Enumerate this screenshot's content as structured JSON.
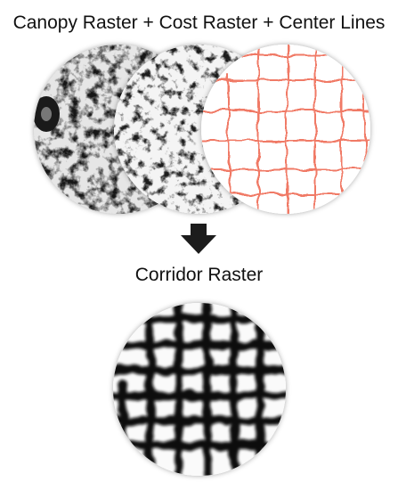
{
  "diagram": {
    "title_top": "Canopy Raster + Cost Raster + Center Lines",
    "title_bottom": "Corridor Raster",
    "inputs": [
      {
        "name": "Canopy Raster",
        "style": "dark-mottled"
      },
      {
        "name": "Cost Raster",
        "style": "light-mottled"
      },
      {
        "name": "Center Lines",
        "style": "red-grid"
      }
    ],
    "output": {
      "name": "Corridor Raster",
      "style": "black-grid"
    },
    "colors": {
      "center_line": "#f07a66",
      "corridor": "#111111",
      "arrow": "#1c1c1c",
      "text": "#111111"
    },
    "arrow_icon": "down-arrow-icon"
  }
}
